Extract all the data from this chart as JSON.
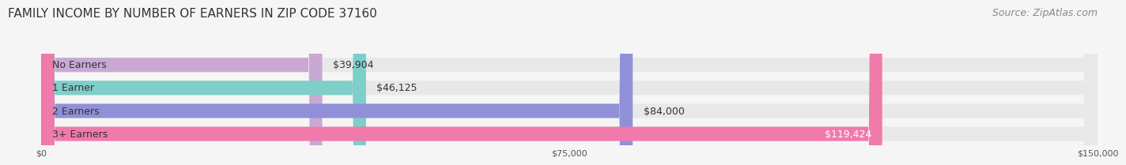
{
  "title": "FAMILY INCOME BY NUMBER OF EARNERS IN ZIP CODE 37160",
  "source": "Source: ZipAtlas.com",
  "categories": [
    "No Earners",
    "1 Earner",
    "2 Earners",
    "3+ Earners"
  ],
  "values": [
    39904,
    46125,
    84000,
    119424
  ],
  "bar_colors": [
    "#c9a8d4",
    "#7ececa",
    "#9090d8",
    "#f07aaa"
  ],
  "bar_bg_color": "#e8e8e8",
  "label_colors": [
    "#333333",
    "#333333",
    "#333333",
    "#ffffff"
  ],
  "xlim": [
    0,
    150000
  ],
  "xticks": [
    0,
    75000,
    150000
  ],
  "xtick_labels": [
    "$0",
    "$75,000",
    "$150,000"
  ],
  "title_fontsize": 11,
  "source_fontsize": 9,
  "bar_label_fontsize": 9,
  "category_fontsize": 9,
  "background_color": "#f5f5f5",
  "bar_bg_alpha": 1.0
}
